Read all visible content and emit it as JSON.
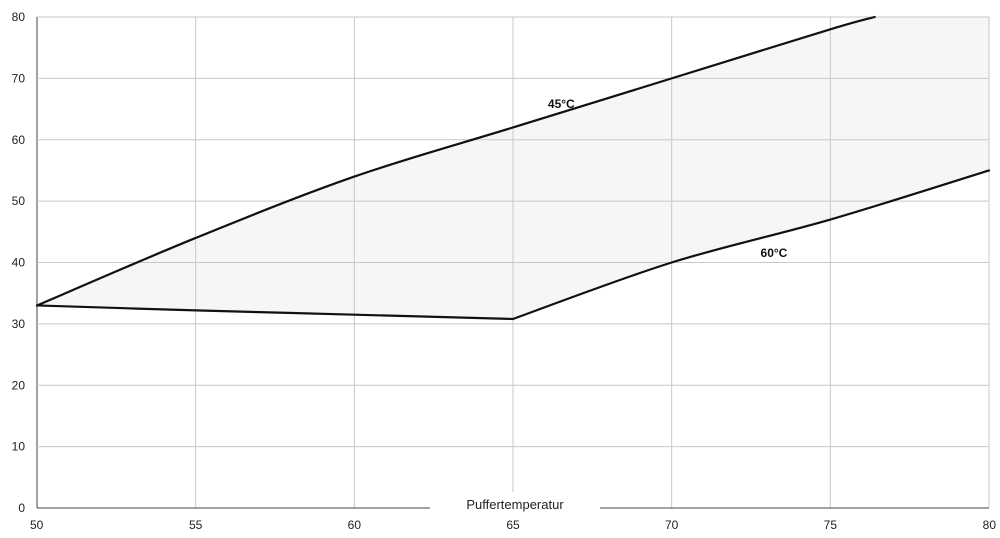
{
  "chart_data": {
    "type": "line",
    "title": "",
    "xlabel": "Puffertemperatur",
    "ylabel": "",
    "xlim": [
      50,
      80
    ],
    "ylim": [
      0,
      80
    ],
    "x_ticks": [
      50,
      55,
      60,
      65,
      70,
      75,
      80
    ],
    "y_ticks": [
      0,
      10,
      20,
      30,
      40,
      50,
      60,
      70,
      80
    ],
    "grid": true,
    "colors": {
      "line": "#111111",
      "fill": "#f6f6f4",
      "grid": "#c8c8c8",
      "axis": "#444444"
    },
    "series": [
      {
        "name": "45°C",
        "x": [
          50,
          55,
          60,
          65,
          70,
          75,
          76.4
        ],
        "y": [
          33,
          44,
          54,
          62,
          70,
          78,
          80
        ]
      },
      {
        "name": "60°C",
        "x": [
          50,
          55,
          60,
          65,
          70,
          75,
          80
        ],
        "y": [
          33,
          32.2,
          31.5,
          30.8,
          40,
          47,
          55
        ]
      }
    ],
    "shaded_region": "between 45°C and 60°C"
  }
}
